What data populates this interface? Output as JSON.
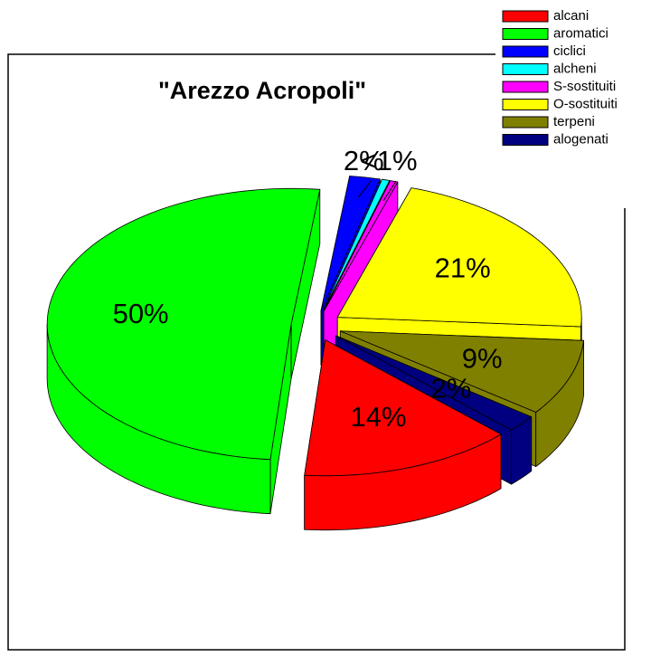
{
  "chart_data": {
    "type": "pie",
    "title": "\"Arezzo Acropoli\"",
    "categories": [
      "alcani",
      "aromatici",
      "ciclici",
      "alcheni",
      "S-sostituiti",
      "O-sostituiti",
      "terpeni",
      "alogenati"
    ],
    "values": [
      14,
      50,
      2,
      0.5,
      0.5,
      21,
      9,
      2
    ],
    "value_labels": [
      "14%",
      "50%",
      "2%",
      null,
      "<1%",
      "21%",
      "9%",
      "2%"
    ],
    "colors": [
      "#ff0000",
      "#00ff00",
      "#0000ff",
      "#00ffff",
      "#ff00ff",
      "#ffff00",
      "#808000",
      "#000080"
    ],
    "legend": "top-right"
  }
}
